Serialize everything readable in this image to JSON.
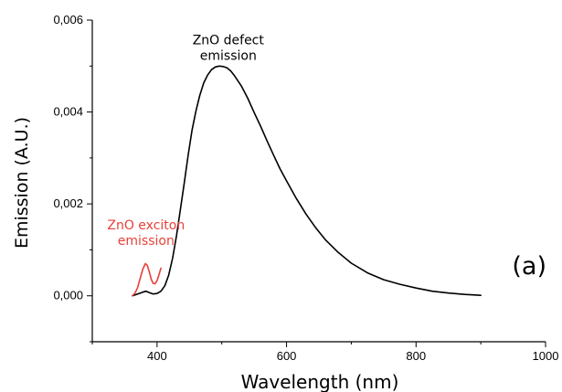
{
  "chart_data": {
    "type": "line",
    "xlabel": "Wavelength (nm)",
    "ylabel": "Emission (A.U.)",
    "xlim": [
      300,
      1000
    ],
    "ylim": [
      -0.001,
      0.006
    ],
    "x_ticks": [
      400,
      600,
      800,
      1000
    ],
    "x_tick_labels": [
      "400",
      "600",
      "800",
      "1000"
    ],
    "y_ticks": [
      0.0,
      0.002,
      0.004,
      0.006
    ],
    "y_tick_labels": [
      "0,000",
      "0,002",
      "0,004",
      "0,006"
    ],
    "grid": false,
    "panel_label": "(a)",
    "annotations": [
      {
        "lines": [
          "ZnO defect",
          "emission"
        ],
        "color": "#000000",
        "x": 510,
        "y": 0.00547
      },
      {
        "lines": [
          "ZnO exciton",
          "emission"
        ],
        "color": "#e8413a",
        "x": 383,
        "y": 0.00145
      }
    ],
    "series": [
      {
        "color": "#000000",
        "x": [
          362,
          370,
          378,
          383,
          388,
          394,
          400,
          406,
          412,
          418,
          424,
          430,
          436,
          442,
          448,
          454,
          460,
          466,
          472,
          478,
          484,
          490,
          496,
          502,
          508,
          514,
          520,
          530,
          540,
          550,
          560,
          570,
          580,
          590,
          600,
          615,
          630,
          645,
          660,
          680,
          700,
          725,
          750,
          775,
          800,
          825,
          850,
          875,
          900
        ],
        "y": [
          0.0,
          4e-05,
          8e-05,
          0.0001,
          7e-05,
          4e-05,
          5e-05,
          0.0001,
          0.00022,
          0.00045,
          0.00082,
          0.0013,
          0.00188,
          0.00245,
          0.00306,
          0.0036,
          0.00402,
          0.00436,
          0.00463,
          0.0048,
          0.00492,
          0.00498,
          0.005,
          0.00499,
          0.00496,
          0.00489,
          0.00478,
          0.00457,
          0.0043,
          0.00399,
          0.00369,
          0.00337,
          0.00306,
          0.00276,
          0.0025,
          0.00212,
          0.00178,
          0.00148,
          0.00122,
          0.00094,
          0.00071,
          0.0005,
          0.00035,
          0.00025,
          0.00017,
          0.0001,
          6e-05,
          3e-05,
          1e-05
        ]
      },
      {
        "color": "#e8413a",
        "x": [
          362,
          366,
          370,
          374,
          378,
          382,
          385,
          388,
          391,
          394,
          397,
          400,
          403,
          406
        ],
        "y": [
          0.0,
          6e-05,
          0.00018,
          0.00038,
          0.00058,
          0.0007,
          0.00066,
          0.00052,
          0.00036,
          0.00027,
          0.00026,
          0.00033,
          0.00046,
          0.0006
        ]
      }
    ]
  }
}
